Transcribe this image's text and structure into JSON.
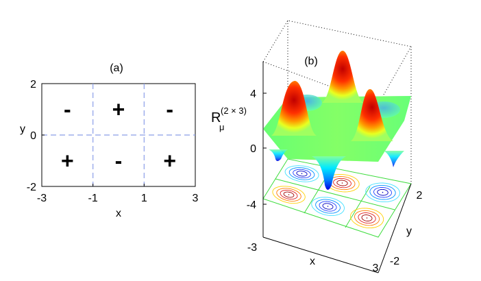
{
  "chart_data": [
    {
      "type": "heatmap",
      "panel_label": "(a)",
      "xlabel": "x",
      "ylabel": "y",
      "xlim": [
        -3,
        3
      ],
      "ylim": [
        -2,
        2
      ],
      "xticks": [
        "-3",
        "-1",
        "1",
        "3"
      ],
      "yticks": [
        "-2",
        "0",
        "2"
      ],
      "grid_lines": {
        "x": [
          -1,
          1
        ],
        "y": [
          0
        ]
      },
      "cells": [
        {
          "x": -2,
          "y": 1,
          "sign": "-"
        },
        {
          "x": 0,
          "y": 1,
          "sign": "+"
        },
        {
          "x": 2,
          "y": 1,
          "sign": "-"
        },
        {
          "x": -2,
          "y": -1,
          "sign": "+"
        },
        {
          "x": 0,
          "y": -1,
          "sign": "-"
        },
        {
          "x": 2,
          "y": -1,
          "sign": "+"
        }
      ]
    },
    {
      "type": "surface",
      "panel_label": "(b)",
      "zlabel_base": "R",
      "zlabel_sub": "μ",
      "zlabel_sup": "(2 × 3)",
      "xlabel": "x",
      "ylabel": "y",
      "xticks": [
        "-3",
        "3"
      ],
      "yticks": [
        "-2",
        "2"
      ],
      "zticks": [
        "4",
        "0",
        "-4"
      ],
      "xlim": [
        -3,
        3
      ],
      "ylim": [
        -2,
        2
      ],
      "zlim": [
        -4,
        4
      ],
      "peaks": [
        {
          "x": -2,
          "y": 1,
          "z": -4
        },
        {
          "x": 0,
          "y": 1,
          "z": 4
        },
        {
          "x": 2,
          "y": 1,
          "z": -4
        },
        {
          "x": -2,
          "y": -1,
          "z": 4
        },
        {
          "x": 0,
          "y": -1,
          "z": -4
        },
        {
          "x": 2,
          "y": -1,
          "z": 4
        }
      ],
      "colormap": [
        "#0000ff",
        "#00a0ff",
        "#00ffff",
        "#a0ff60",
        "#ffff00",
        "#ff8000",
        "#c00000"
      ]
    }
  ]
}
